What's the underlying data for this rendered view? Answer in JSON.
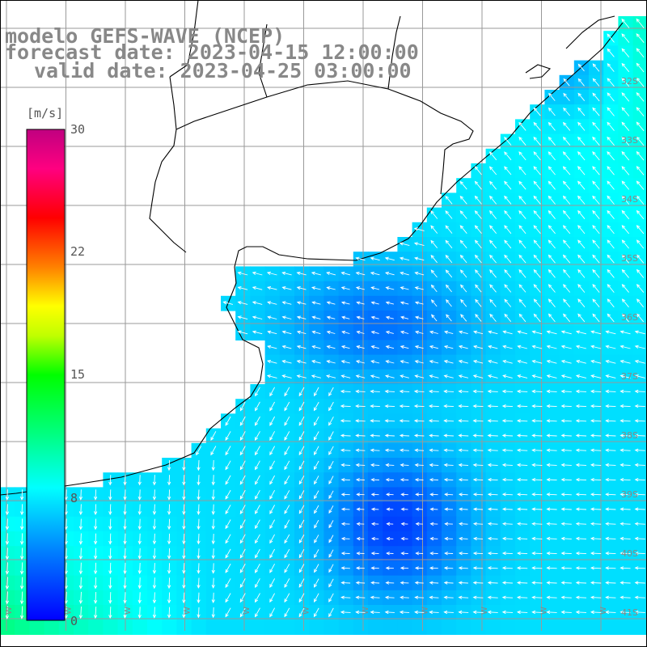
{
  "title": {
    "line1": "modelo GEFS-WAVE (NCEP)",
    "line2": "forecast date: 2023-04-15 12:00:00",
    "line3": "valid date: 2023-04-25 03:00:00"
  },
  "colorbar": {
    "unit": "[m/s]",
    "ticks": [
      "30",
      "22",
      "15",
      "8",
      "0"
    ],
    "tick_values": [
      30,
      22,
      15,
      8,
      0
    ],
    "colors": [
      "#0000ff",
      "#00a0ff",
      "#00ffff",
      "#00ff80",
      "#00ff00",
      "#80ff00",
      "#ffff00",
      "#ff8000",
      "#ff0000",
      "#ff0080",
      "#c00080"
    ]
  },
  "map": {
    "land_color": "#ffffff",
    "grid_color": "#999999",
    "coast_color": "#000000",
    "arrow_color": "#ffffff",
    "latitude_labels": [
      "32S",
      "33S",
      "34S",
      "35S",
      "36S",
      "37S",
      "38S",
      "39S",
      "40S",
      "41S"
    ],
    "longitude_labels": [
      "W",
      "W",
      "W",
      "W",
      "W",
      "W",
      "W",
      "W",
      "W",
      "W",
      "W"
    ]
  }
}
